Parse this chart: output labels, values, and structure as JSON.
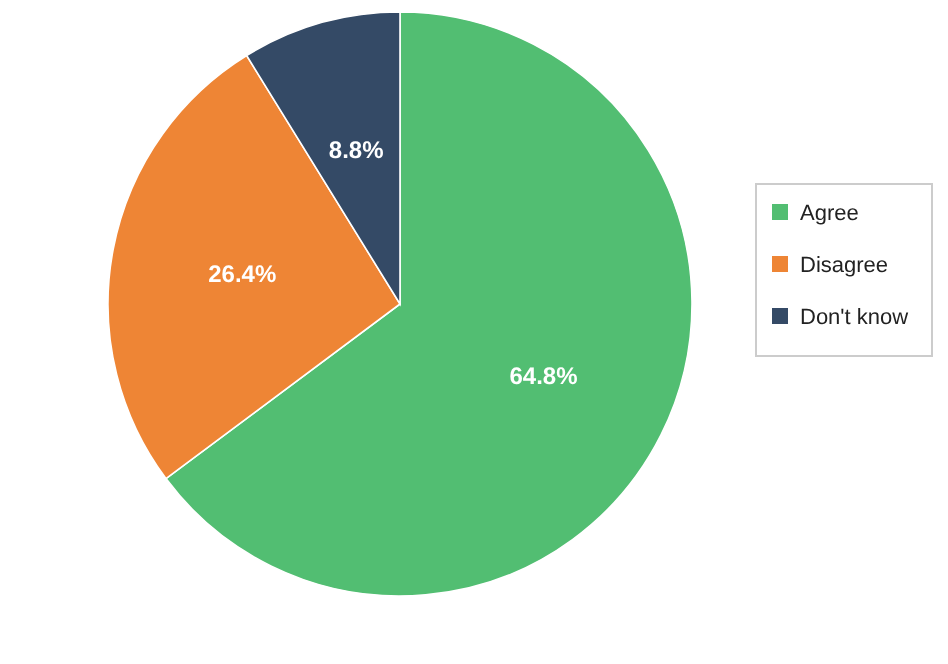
{
  "chart_data": {
    "type": "pie",
    "categories": [
      "Agree",
      "Disagree",
      "Don't know"
    ],
    "values": [
      64.8,
      26.4,
      8.8
    ],
    "colors": [
      "#52be72",
      "#ee8535",
      "#344a66"
    ],
    "value_labels": [
      "64.8%",
      "26.4%",
      "8.8%"
    ],
    "legend": "right"
  }
}
